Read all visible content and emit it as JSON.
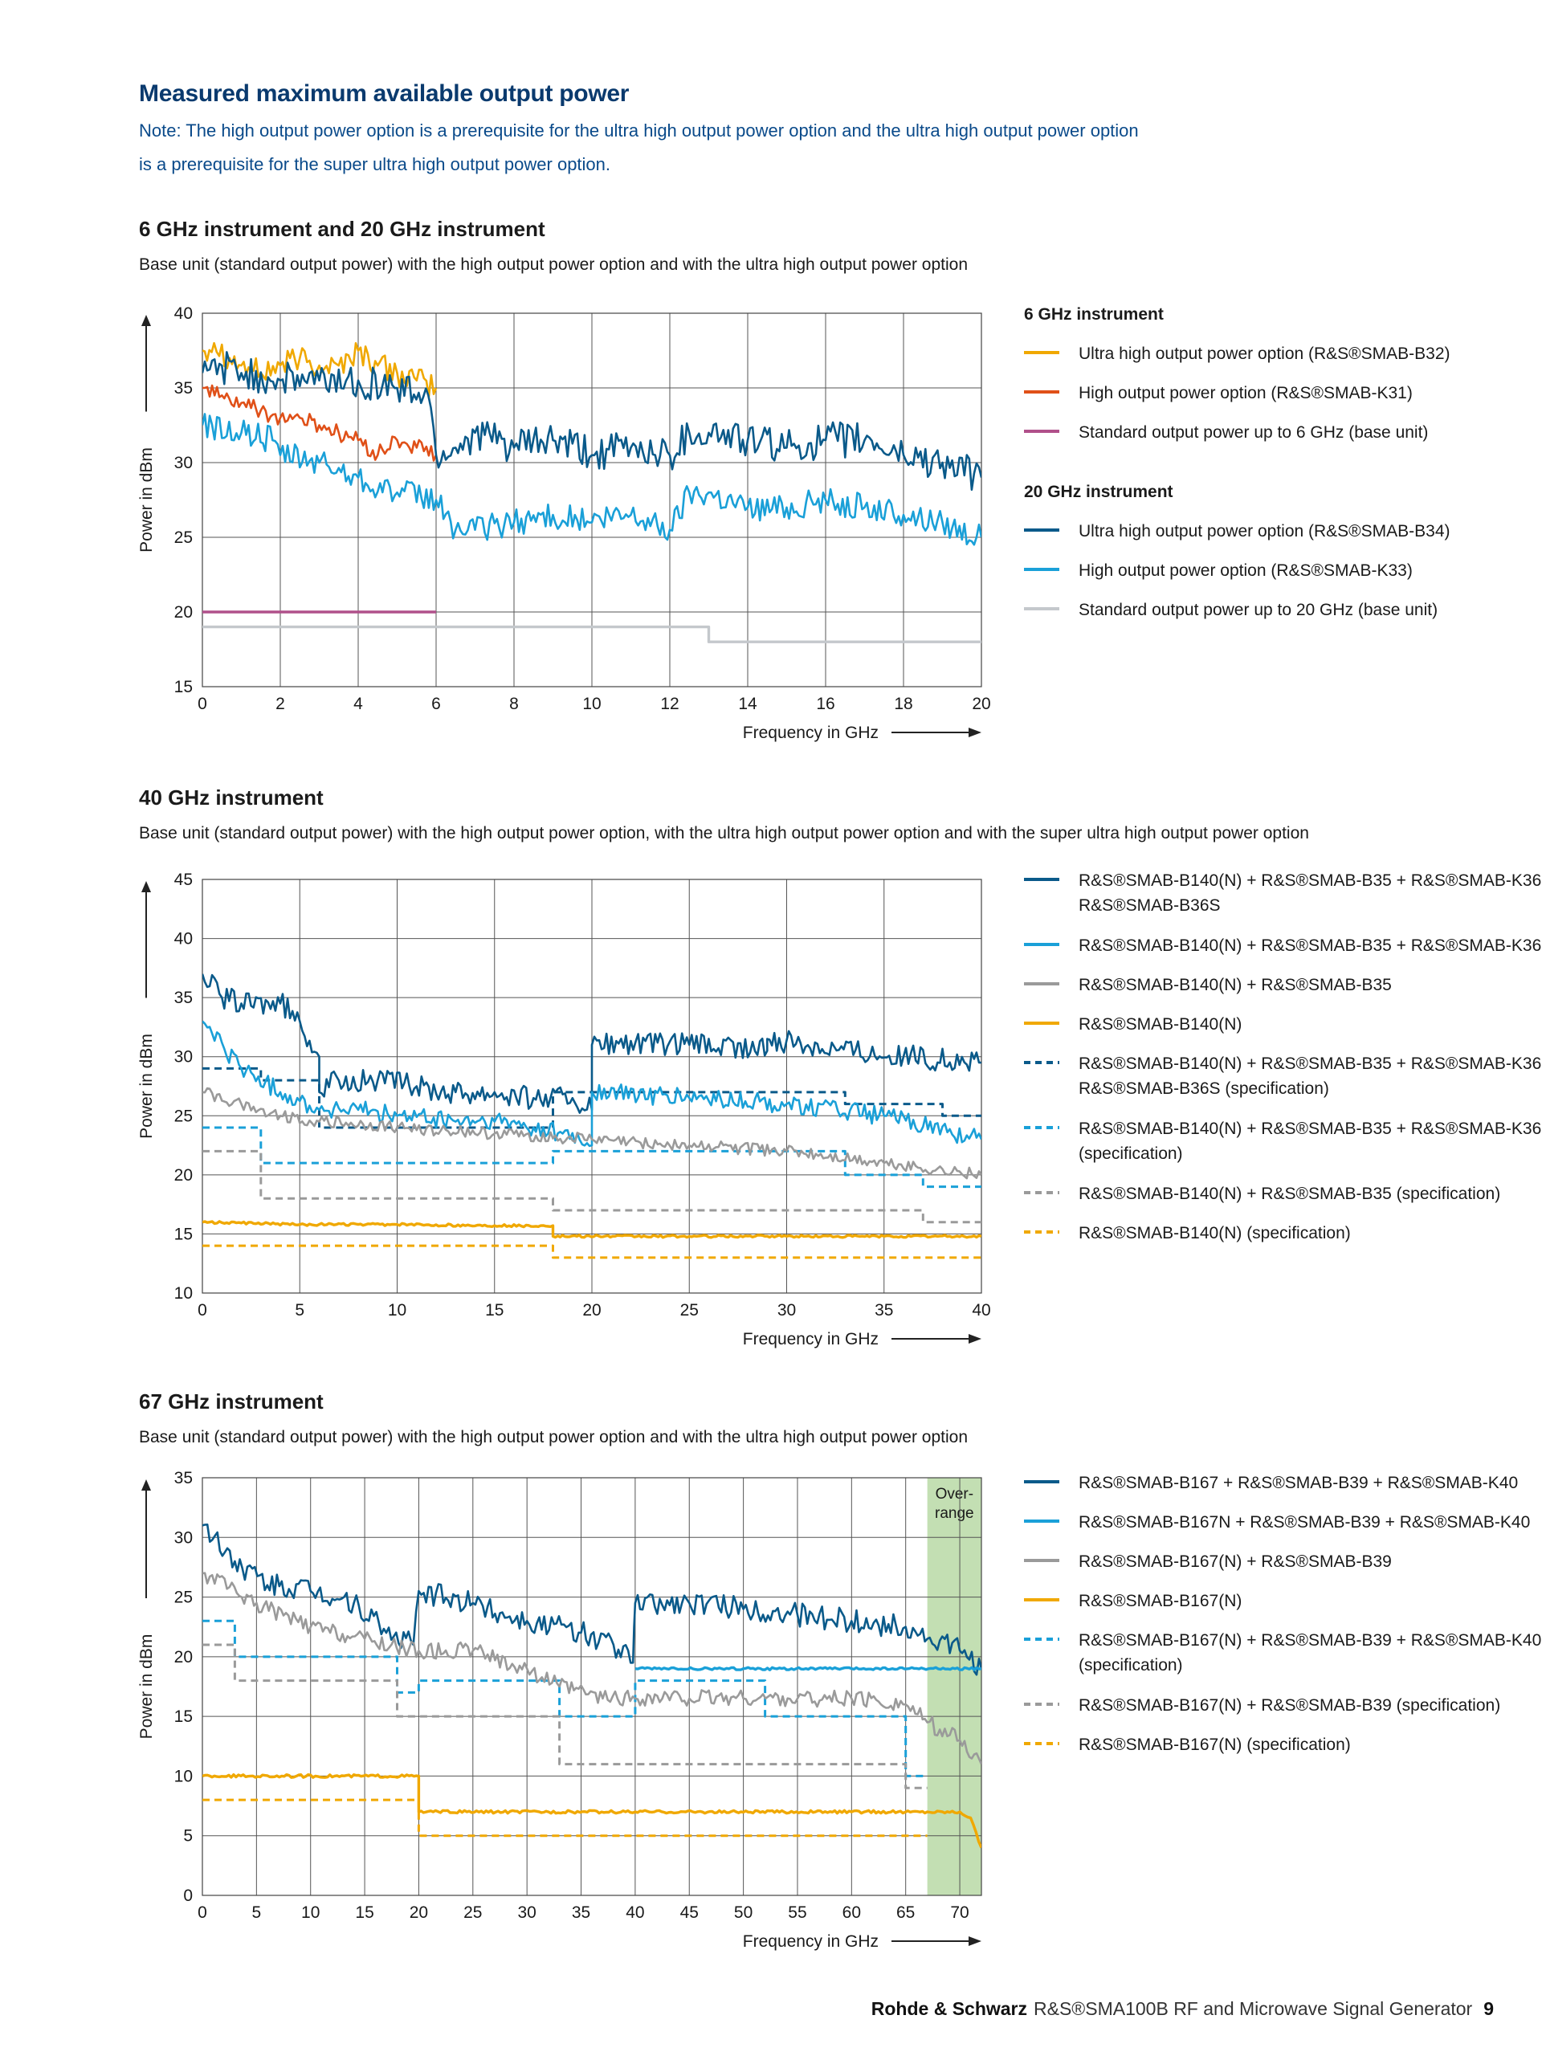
{
  "heading": "Measured maximum available output power",
  "note_line1": "Note: The high output power option is a prerequisite for the ultra high output power option and the ultra high output power option",
  "note_line2": "is a prerequisite for the super ultra high output power option.",
  "footer": {
    "brand": "Rohde & Schwarz",
    "product": "R&S®SMA100B RF and Microwave Signal Generator",
    "page": "9"
  },
  "colors": {
    "dark_blue": "#0a5a8a",
    "light_blue": "#1aa0d8",
    "gray": "#9a9a9a",
    "light_gray": "#c4c8cc",
    "orange": "#f0a800",
    "red_orange": "#e05018",
    "magenta": "#b0508a",
    "over_range": "#c3dfb3"
  },
  "chart_data": [
    {
      "id": "chart1",
      "type": "line",
      "title": "6 GHz instrument and 20 GHz instrument",
      "subtitle": "Base unit (standard output power) with the high output power option and with the ultra high output power option",
      "xlabel": "Frequency in GHz",
      "ylabel": "Power in dBm",
      "xlim": [
        0,
        20
      ],
      "ylim": [
        15,
        40
      ],
      "xticks": [
        0,
        2,
        4,
        6,
        8,
        10,
        12,
        14,
        16,
        18,
        20
      ],
      "yticks": [
        15,
        20,
        25,
        30,
        35,
        40
      ],
      "grid": true,
      "legend_position": "right",
      "legend_groups": [
        "6 GHz instrument",
        "20 GHz instrument"
      ],
      "series": [
        {
          "name": "Ultra high output power option (R&S®SMAB-B32)",
          "group": "6 GHz instrument",
          "color": "orange",
          "style": "solid",
          "noise": 0.9,
          "x": [
            0,
            0.3,
            0.7,
            1.0,
            1.5,
            2.0,
            2.5,
            3.0,
            3.5,
            4.0,
            4.5,
            5.0,
            5.5,
            6.0
          ],
          "y": [
            37.5,
            38,
            37,
            36.5,
            36,
            36.5,
            37,
            36.5,
            36.5,
            37.5,
            36.5,
            36,
            35.5,
            35
          ]
        },
        {
          "name": "High output power option (R&S®SMAB-K31)",
          "group": "6 GHz instrument",
          "color": "red_orange",
          "style": "solid",
          "noise": 0.6,
          "x": [
            0,
            0.5,
            1.0,
            1.5,
            2.0,
            2.5,
            3.0,
            3.5,
            4.0,
            4.5,
            5.0,
            5.5,
            6.0
          ],
          "y": [
            35,
            34.5,
            34,
            33.5,
            33,
            33,
            32.5,
            32,
            31.5,
            30.5,
            31.5,
            31,
            30.5
          ]
        },
        {
          "name": "Standard output power up to 6 GHz (base unit)",
          "group": "6 GHz instrument",
          "color": "magenta",
          "style": "solid",
          "noise": 0,
          "x": [
            0,
            6
          ],
          "y": [
            20,
            20
          ]
        },
        {
          "name": "Ultra high output power option (R&S®SMAB-B34)",
          "group": "20 GHz instrument",
          "color": "dark_blue",
          "style": "solid",
          "noise": 1.2,
          "x": [
            0,
            0.5,
            1.0,
            2.0,
            3.0,
            4.0,
            5.0,
            5.8,
            6.0,
            6.5,
            7.0,
            8.0,
            9.0,
            10.0,
            11.0,
            12.0,
            12.5,
            13.0,
            14.0,
            15.0,
            16.0,
            17.0,
            18.0,
            19.0,
            20.0
          ],
          "y": [
            36,
            36.5,
            36,
            35.5,
            35.5,
            35.5,
            35,
            34.5,
            30.5,
            31,
            32,
            31,
            31.5,
            30.5,
            31,
            30.5,
            32,
            32,
            31.5,
            31,
            31.5,
            31.5,
            30.5,
            30,
            29
          ]
        },
        {
          "name": "High output power option (R&S®SMAB-K33)",
          "group": "20 GHz instrument",
          "color": "light_blue",
          "style": "solid",
          "noise": 0.9,
          "x": [
            0,
            1.0,
            1.8,
            2.0,
            3.0,
            4.0,
            5.0,
            6.0,
            6.5,
            7.0,
            8.0,
            9.0,
            10.0,
            11.0,
            12.0,
            12.5,
            13.0,
            14.0,
            15.0,
            16.0,
            17.0,
            18.0,
            19.0,
            20.0
          ],
          "y": [
            32.5,
            32,
            31.5,
            30.5,
            30,
            29,
            28,
            27.5,
            25.5,
            25.5,
            26,
            26.5,
            26,
            26.5,
            25.5,
            28,
            28,
            27,
            27,
            27.5,
            27,
            26.5,
            26,
            25
          ]
        },
        {
          "name": "Standard output power up to 20 GHz (base unit)",
          "group": "20 GHz instrument",
          "color": "light_gray",
          "style": "solid",
          "noise": 0,
          "x": [
            0,
            13,
            13,
            20
          ],
          "y": [
            19,
            19,
            18,
            18
          ]
        }
      ]
    },
    {
      "id": "chart2",
      "type": "line",
      "title": "40 GHz instrument",
      "subtitle": "Base unit (standard output power) with the high output power option, with the ultra high output power option and with the super ultra high output power option",
      "xlabel": "Frequency in GHz",
      "ylabel": "Power in dBm",
      "xlim": [
        0,
        40
      ],
      "ylim": [
        10,
        45
      ],
      "xticks": [
        0,
        5,
        10,
        15,
        20,
        25,
        30,
        35,
        40
      ],
      "yticks": [
        10,
        15,
        20,
        25,
        30,
        35,
        40,
        45
      ],
      "grid": true,
      "legend_position": "right",
      "series": [
        {
          "name": "R&S®SMAB-B140(N) + R&S®SMAB-B35 + R&S®SMAB-K36 + R&S®SMAB-B36S",
          "color": "dark_blue",
          "style": "solid",
          "noise": 1.0,
          "x": [
            0,
            1,
            2,
            4,
            5,
            6,
            6,
            7,
            9,
            11,
            13,
            15,
            17,
            19,
            20,
            20,
            25,
            29,
            29,
            36,
            40
          ],
          "y": [
            37,
            35,
            34.5,
            34.5,
            33,
            30,
            27,
            28,
            28,
            27.5,
            27,
            27,
            26.5,
            26.5,
            25.5,
            31,
            31,
            30.5,
            31.5,
            30,
            29.5
          ]
        },
        {
          "name": "R&S®SMAB-B140(N) + R&S®SMAB-B35 + R&S®SMAB-K36",
          "color": "light_blue",
          "style": "solid",
          "noise": 0.8,
          "x": [
            0,
            2,
            4,
            6,
            8,
            10,
            13,
            15,
            17,
            18.5,
            20,
            20,
            25,
            30,
            35,
            40
          ],
          "y": [
            33,
            29,
            27,
            25.5,
            25.5,
            25,
            24.5,
            24.5,
            24,
            23.5,
            22.5,
            27,
            26.5,
            26,
            25,
            23
          ]
        },
        {
          "name": "R&S®SMAB-B140(N) + R&S®SMAB-B35",
          "color": "gray",
          "style": "solid",
          "noise": 0.5,
          "x": [
            0,
            2,
            4,
            6,
            10,
            15,
            20,
            25,
            30,
            35,
            40
          ],
          "y": [
            27,
            26,
            25,
            24.5,
            24,
            23.5,
            23,
            22.5,
            22,
            21,
            20
          ]
        },
        {
          "name": "R&S®SMAB-B140(N)",
          "color": "orange",
          "style": "solid",
          "noise": 0.1,
          "x": [
            0,
            5,
            10,
            15,
            18,
            18,
            25,
            30,
            35,
            40
          ],
          "y": [
            16,
            15.8,
            15.8,
            15.7,
            15.7,
            14.8,
            14.8,
            14.8,
            14.8,
            14.8
          ]
        },
        {
          "name": "R&S®SMAB-B140(N) + R&S®SMAB-B35 + R&S®SMAB-K36 + R&S®SMAB-B36S (specification)",
          "color": "dark_blue",
          "style": "dashed",
          "noise": 0,
          "x": [
            0,
            3,
            3,
            6,
            6,
            18,
            18,
            33,
            33,
            38,
            38,
            40
          ],
          "y": [
            29,
            29,
            28,
            28,
            24,
            24,
            27,
            27,
            26,
            26,
            25,
            25
          ]
        },
        {
          "name": "R&S®SMAB-B140(N) + R&S®SMAB-B35 + R&S®SMAB-K36 (specification)",
          "color": "light_blue",
          "style": "dashed",
          "noise": 0,
          "x": [
            0,
            3,
            3,
            18,
            18,
            33,
            33,
            37,
            37,
            40
          ],
          "y": [
            24,
            24,
            21,
            21,
            22,
            22,
            20,
            20,
            19,
            19
          ]
        },
        {
          "name": "R&S®SMAB-B140(N) + R&S®SMAB-B35 (specification)",
          "color": "gray",
          "style": "dashed",
          "noise": 0,
          "x": [
            0,
            3,
            3,
            18,
            18,
            37,
            37,
            40
          ],
          "y": [
            22,
            22,
            18,
            18,
            17,
            17,
            16,
            16
          ]
        },
        {
          "name": "R&S®SMAB-B140(N) (specification)",
          "color": "orange",
          "style": "dashed",
          "noise": 0,
          "x": [
            0,
            18,
            18,
            40
          ],
          "y": [
            14,
            14,
            13,
            13
          ]
        }
      ]
    },
    {
      "id": "chart3",
      "type": "line",
      "title": "67 GHz instrument",
      "subtitle": "Base unit (standard output power) with the high output power option and with the ultra high output power option",
      "xlabel": "Frequency in GHz",
      "ylabel": "Power in dBm",
      "xlim": [
        0,
        72
      ],
      "ylim": [
        0,
        35
      ],
      "xticks": [
        0,
        5,
        10,
        15,
        20,
        25,
        30,
        35,
        40,
        45,
        50,
        55,
        60,
        65,
        70
      ],
      "yticks": [
        0,
        5,
        10,
        15,
        20,
        25,
        30,
        35
      ],
      "grid": true,
      "legend_position": "right",
      "over_range": {
        "x_from": 67,
        "x_to": 72,
        "label_line1": "Over-",
        "label_line2": "range"
      },
      "series": [
        {
          "name": "R&S®SMAB-B167 + R&S®SMAB-B39 + R&S®SMAB-K40",
          "color": "dark_blue",
          "style": "solid",
          "noise": 1.0,
          "x": [
            0,
            3,
            6,
            10,
            14,
            17,
            19.5,
            20,
            25,
            30,
            35,
            38,
            39.8,
            40,
            45,
            50,
            55,
            60,
            65,
            67,
            70,
            72
          ],
          "y": [
            31,
            28,
            26,
            25.5,
            24.5,
            22,
            21,
            25.5,
            24.5,
            23,
            22,
            21,
            19.5,
            24.5,
            24.5,
            24,
            23.5,
            23,
            22.5,
            21.5,
            20.5,
            19
          ]
        },
        {
          "name": "R&S®SMAB-B167N + R&S®SMAB-B39 + R&S®SMAB-K40",
          "color": "light_blue",
          "style": "solid",
          "noise": 0.1,
          "x": [
            40,
            50,
            60,
            72
          ],
          "y": [
            19,
            19,
            19,
            19
          ]
        },
        {
          "name": "R&S®SMAB-B167(N) + R&S®SMAB-B39",
          "color": "gray",
          "style": "solid",
          "noise": 0.7,
          "x": [
            0,
            5,
            10,
            15,
            20,
            25,
            30,
            33,
            37,
            40,
            45,
            50,
            55,
            60,
            65,
            67,
            70,
            72
          ],
          "y": [
            27,
            24.5,
            22.5,
            21.5,
            20.5,
            20.5,
            19,
            17.5,
            16.5,
            16.5,
            16.5,
            16.5,
            16.5,
            16.5,
            16,
            14.5,
            13,
            11
          ]
        },
        {
          "name": "R&S®SMAB-B167(N)",
          "color": "orange",
          "style": "solid",
          "noise": 0.12,
          "x": [
            0,
            20,
            20,
            40,
            60,
            67,
            70,
            71,
            72
          ],
          "y": [
            10,
            10,
            7,
            7,
            7,
            7,
            7,
            6.5,
            4
          ]
        },
        {
          "name": "R&S®SMAB-B167(N) + R&S®SMAB-B39 + R&S®SMAB-K40 (specification)",
          "color": "light_blue",
          "style": "dashed",
          "noise": 0,
          "x": [
            0,
            3,
            3,
            18,
            18,
            20,
            20,
            33,
            33,
            40,
            40,
            52,
            52,
            65,
            65,
            67
          ],
          "y": [
            23,
            23,
            20,
            20,
            17,
            17,
            18,
            18,
            15,
            15,
            18,
            18,
            15,
            15,
            10,
            10
          ]
        },
        {
          "name": "R&S®SMAB-B167(N) + R&S®SMAB-B39 (specification)",
          "color": "gray",
          "style": "dashed",
          "noise": 0,
          "x": [
            0,
            3,
            3,
            18,
            18,
            33,
            33,
            65,
            65,
            67
          ],
          "y": [
            21,
            21,
            18,
            18,
            15,
            15,
            11,
            11,
            9,
            9
          ]
        },
        {
          "name": "R&S®SMAB-B167(N) (specification)",
          "color": "orange",
          "style": "dashed",
          "noise": 0,
          "x": [
            0,
            20,
            20,
            67
          ],
          "y": [
            8,
            8,
            5,
            5
          ]
        }
      ]
    }
  ]
}
